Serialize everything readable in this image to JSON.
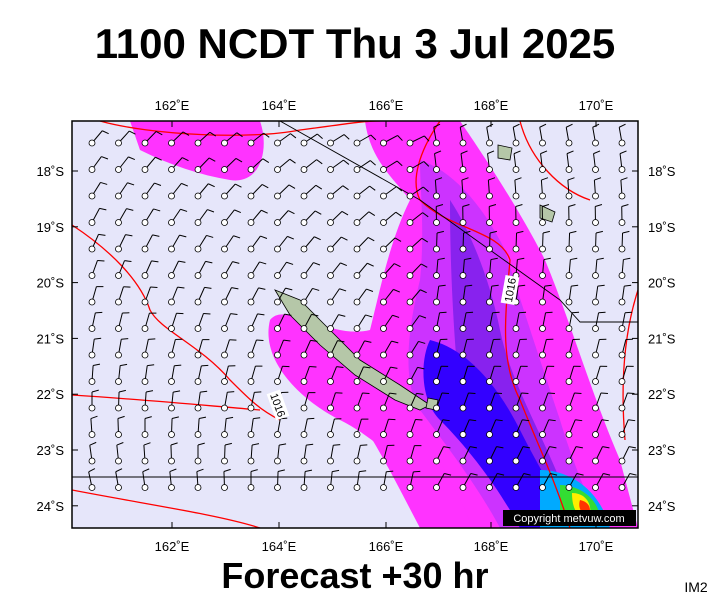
{
  "header": {
    "title": "1100 NCDT Thu 3 Jul 2025"
  },
  "map": {
    "lon_labels": [
      "162˚E",
      "164˚E",
      "166˚E",
      "168˚E",
      "170˚E"
    ],
    "lat_labels": [
      "18˚S",
      "19˚S",
      "20˚S",
      "21˚S",
      "22˚S",
      "23˚S",
      "24˚S"
    ],
    "contour_labels": [
      "1016",
      "1016"
    ],
    "copyright": "Copyright metvuw.com"
  },
  "footer": {
    "forecast": "Forecast +30 hr",
    "code": "IM2"
  }
}
